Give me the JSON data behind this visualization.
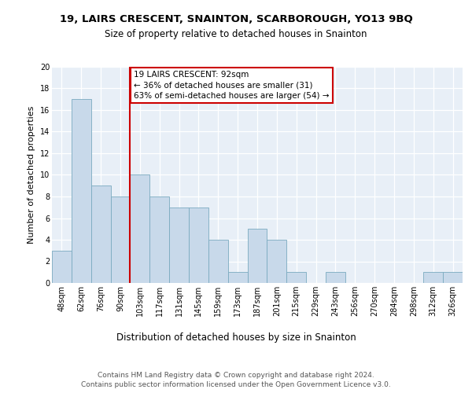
{
  "title1": "19, LAIRS CRESCENT, SNAINTON, SCARBOROUGH, YO13 9BQ",
  "title2": "Size of property relative to detached houses in Snainton",
  "xlabel": "Distribution of detached houses by size in Snainton",
  "ylabel": "Number of detached properties",
  "categories": [
    "48sqm",
    "62sqm",
    "76sqm",
    "90sqm",
    "103sqm",
    "117sqm",
    "131sqm",
    "145sqm",
    "159sqm",
    "173sqm",
    "187sqm",
    "201sqm",
    "215sqm",
    "229sqm",
    "243sqm",
    "256sqm",
    "270sqm",
    "284sqm",
    "298sqm",
    "312sqm",
    "326sqm"
  ],
  "values": [
    3,
    17,
    9,
    8,
    10,
    8,
    7,
    7,
    4,
    1,
    5,
    4,
    1,
    0,
    1,
    0,
    0,
    0,
    0,
    1,
    1
  ],
  "bar_color": "#c8d9ea",
  "bar_edge_color": "#7aaabf",
  "annotation_label": "19 LAIRS CRESCENT: 92sqm",
  "annotation_line1": "← 36% of detached houses are smaller (31)",
  "annotation_line2": "63% of semi-detached houses are larger (54) →",
  "annotation_box_color": "white",
  "annotation_box_edge_color": "#cc0000",
  "vline_color": "#cc0000",
  "ylim": [
    0,
    20
  ],
  "yticks": [
    0,
    2,
    4,
    6,
    8,
    10,
    12,
    14,
    16,
    18,
    20
  ],
  "footer": "Contains HM Land Registry data © Crown copyright and database right 2024.\nContains public sector information licensed under the Open Government Licence v3.0.",
  "bg_color": "#e8eff7",
  "title1_fontsize": 9.5,
  "title2_fontsize": 8.5,
  "xlabel_fontsize": 8.5,
  "ylabel_fontsize": 8.0,
  "tick_fontsize": 7.0,
  "annotation_fontsize": 7.5,
  "footer_fontsize": 6.5
}
